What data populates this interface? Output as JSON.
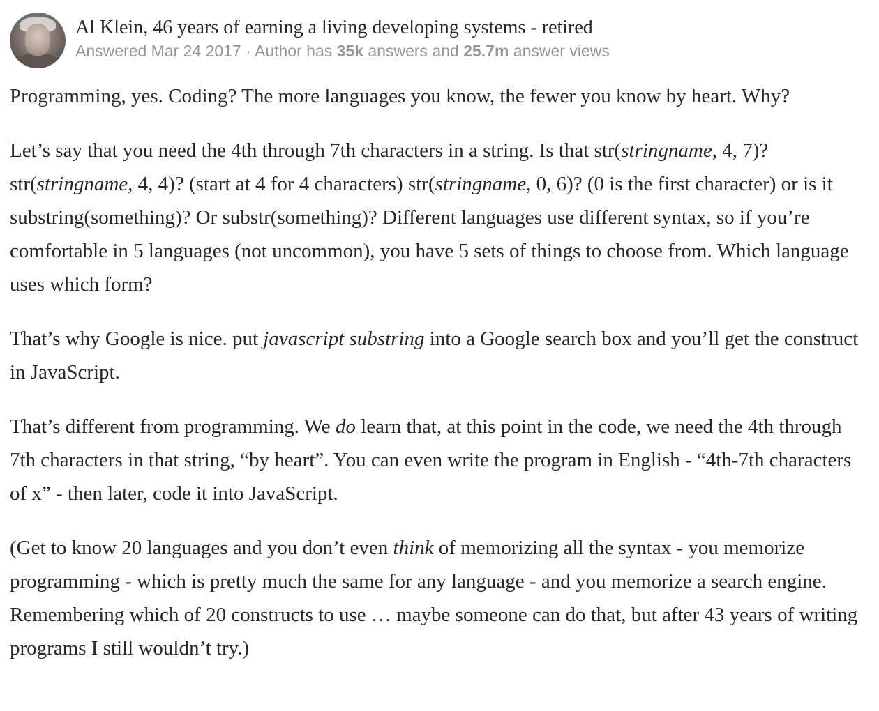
{
  "author": {
    "name_credential": "Al Klein, 46 years of earning a living developing systems - retired",
    "answered": "Answered Mar 24 2017 · Author has ",
    "answers_count": "35k",
    "answers_mid": " answers and ",
    "views_count": "25.7m",
    "views_tail": " answer views"
  },
  "answer": {
    "p1": "Programming, yes. Coding? The more languages you know, the fewer you know by heart. Why?",
    "p2_a": "Let’s say that you need the 4th through 7th characters in a string. Is that str(",
    "p2_b": "stringname",
    "p2_c": ", 4, 7)? str(",
    "p2_d": "stringname",
    "p2_e": ", 4, 4)? (start at 4 for 4 characters) str(",
    "p2_f": "stringname",
    "p2_g": ", 0, 6)? (0 is the first character) or is it substring(something)? Or substr(something)? Different languages use different syntax, so if you’re comfortable in 5 languages (not uncommon), you have 5 sets of things to choose from. Which language uses which form?",
    "p3_a": "That’s why Google is nice. put ",
    "p3_b": "javascript substring",
    "p3_c": " into a Google search box and you’ll get the construct in JavaScript.",
    "p4_a": "That’s different from programming. We ",
    "p4_b": "do",
    "p4_c": " learn that, at this point in the code, we need the 4th through 7th characters in that string, “by heart”. You can even write the program in English - “4th-7th characters of x” - then later, code it into JavaScript.",
    "p5_a": "(Get to know 20 languages and you don’t even ",
    "p5_b": "think",
    "p5_c": " of memorizing all the syntax - you memorize programming - which is pretty much the same for any language - and you memorize a search engine. Remembering which of 20 constructs to use … maybe someone can do that, but after 43 years of writing programs I still wouldn’t try.)"
  }
}
